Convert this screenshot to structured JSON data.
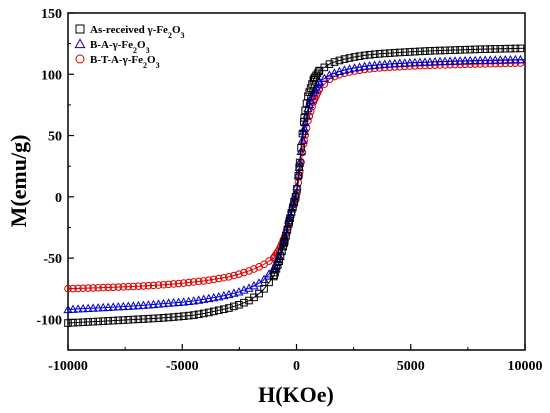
{
  "chart_data": {
    "type": "scatter",
    "xlabel": "H(KOe)",
    "ylabel": "M(emu/g)",
    "xlim": [
      -10000,
      10000
    ],
    "ylim": [
      -125,
      150
    ],
    "xticks": [
      -10000,
      -5000,
      0,
      5000,
      10000
    ],
    "yticks": [
      -100,
      -50,
      0,
      50,
      100,
      150
    ],
    "grid": false,
    "legend_position": "top-left",
    "series": [
      {
        "name": "As-received γ-Fe2O3",
        "legend_parts": {
          "main": "As-received γ-Fe",
          "sub1": "2",
          "mid": "O",
          "sub2": "3"
        },
        "marker": "square",
        "color": "#000000",
        "points": [
          [
            -10000,
            -103
          ],
          [
            -9500,
            -102.5
          ],
          [
            -9000,
            -102
          ],
          [
            -8500,
            -101.5
          ],
          [
            -8000,
            -101
          ],
          [
            -7500,
            -100.5
          ],
          [
            -7000,
            -100
          ],
          [
            -6500,
            -99.5
          ],
          [
            -6000,
            -99
          ],
          [
            -5500,
            -98.3
          ],
          [
            -5000,
            -97.5
          ],
          [
            -4500,
            -96.5
          ],
          [
            -4000,
            -95
          ],
          [
            -3500,
            -93
          ],
          [
            -3000,
            -91
          ],
          [
            -2500,
            -88
          ],
          [
            -2000,
            -84
          ],
          [
            -1500,
            -77
          ],
          [
            -1000,
            -65
          ],
          [
            -750,
            -52
          ],
          [
            -500,
            -35
          ],
          [
            -250,
            -15
          ],
          [
            0,
            3
          ],
          [
            125,
            25
          ],
          [
            250,
            50
          ],
          [
            375,
            70
          ],
          [
            500,
            82
          ],
          [
            750,
            96
          ],
          [
            1000,
            103
          ],
          [
            1500,
            109
          ],
          [
            2000,
            112
          ],
          [
            2500,
            114
          ],
          [
            3000,
            115.5
          ],
          [
            3500,
            116.5
          ],
          [
            4000,
            117.2
          ],
          [
            4500,
            117.8
          ],
          [
            5000,
            118.3
          ],
          [
            5500,
            118.8
          ],
          [
            6000,
            119.2
          ],
          [
            6500,
            119.5
          ],
          [
            7000,
            119.8
          ],
          [
            7500,
            120.1
          ],
          [
            8000,
            120.4
          ],
          [
            8500,
            120.6
          ],
          [
            9000,
            120.8
          ],
          [
            9500,
            121
          ],
          [
            10000,
            121.2
          ]
        ]
      },
      {
        "name": "B-A-γ-Fe2O3",
        "legend_parts": {
          "main": "B-A-γ-Fe",
          "sub1": "2",
          "mid": "O",
          "sub2": "3"
        },
        "marker": "triangle",
        "color": "#0000cc",
        "points": [
          [
            -10000,
            -92
          ],
          [
            -9500,
            -91.5
          ],
          [
            -9000,
            -91
          ],
          [
            -8500,
            -90.5
          ],
          [
            -8000,
            -90
          ],
          [
            -7500,
            -89.5
          ],
          [
            -7000,
            -89
          ],
          [
            -6500,
            -88.3
          ],
          [
            -6000,
            -87.5
          ],
          [
            -5500,
            -86.7
          ],
          [
            -5000,
            -86
          ],
          [
            -4500,
            -85
          ],
          [
            -4000,
            -83.5
          ],
          [
            -3500,
            -82
          ],
          [
            -3000,
            -80
          ],
          [
            -2500,
            -77.5
          ],
          [
            -2000,
            -74
          ],
          [
            -1500,
            -69
          ],
          [
            -1000,
            -59
          ],
          [
            -750,
            -48
          ],
          [
            -500,
            -32
          ],
          [
            -250,
            -12
          ],
          [
            0,
            5
          ],
          [
            125,
            25
          ],
          [
            250,
            45
          ],
          [
            375,
            60
          ],
          [
            500,
            72
          ],
          [
            750,
            86
          ],
          [
            1000,
            94
          ],
          [
            1500,
            100
          ],
          [
            2000,
            103
          ],
          [
            2500,
            105
          ],
          [
            3000,
            106.5
          ],
          [
            3500,
            107.5
          ],
          [
            4000,
            108.3
          ],
          [
            4500,
            108.9
          ],
          [
            5000,
            109.4
          ],
          [
            5500,
            109.8
          ],
          [
            6000,
            110.2
          ],
          [
            6500,
            110.5
          ],
          [
            7000,
            110.8
          ],
          [
            7500,
            111.1
          ],
          [
            8000,
            111.3
          ],
          [
            8500,
            111.5
          ],
          [
            9000,
            111.7
          ],
          [
            9500,
            111.9
          ],
          [
            10000,
            112
          ]
        ]
      },
      {
        "name": "B-T-A-γ-Fe2O3",
        "legend_parts": {
          "main": "B-T-A-γ-Fe",
          "sub1": "2",
          "mid": "O",
          "sub2": "3"
        },
        "marker": "circle",
        "color": "#dd0000",
        "points": [
          [
            -10000,
            -75
          ],
          [
            -9500,
            -74.7
          ],
          [
            -9000,
            -74.4
          ],
          [
            -8500,
            -74.1
          ],
          [
            -8000,
            -73.8
          ],
          [
            -7500,
            -73.4
          ],
          [
            -7000,
            -73
          ],
          [
            -6500,
            -72.5
          ],
          [
            -6000,
            -72
          ],
          [
            -5500,
            -71.3
          ],
          [
            -5000,
            -70.5
          ],
          [
            -4500,
            -69.5
          ],
          [
            -4000,
            -68.5
          ],
          [
            -3500,
            -67
          ],
          [
            -3000,
            -65.5
          ],
          [
            -2500,
            -63
          ],
          [
            -2000,
            -60
          ],
          [
            -1500,
            -56
          ],
          [
            -1000,
            -50
          ],
          [
            -750,
            -43
          ],
          [
            -500,
            -32
          ],
          [
            -250,
            -15
          ],
          [
            0,
            0
          ],
          [
            125,
            18
          ],
          [
            250,
            35
          ],
          [
            375,
            50
          ],
          [
            500,
            62
          ],
          [
            750,
            78
          ],
          [
            1000,
            88
          ],
          [
            1500,
            97
          ],
          [
            2000,
            100.5
          ],
          [
            2500,
            102.5
          ],
          [
            3000,
            104
          ],
          [
            3500,
            105
          ],
          [
            4000,
            105.7
          ],
          [
            4500,
            106.2
          ],
          [
            5000,
            106.7
          ],
          [
            5500,
            107.1
          ],
          [
            6000,
            107.4
          ],
          [
            6500,
            107.7
          ],
          [
            7000,
            108
          ],
          [
            7500,
            108.2
          ],
          [
            8000,
            108.4
          ],
          [
            8500,
            108.6
          ],
          [
            9000,
            108.8
          ],
          [
            9500,
            109
          ],
          [
            10000,
            109.2
          ]
        ]
      }
    ]
  }
}
